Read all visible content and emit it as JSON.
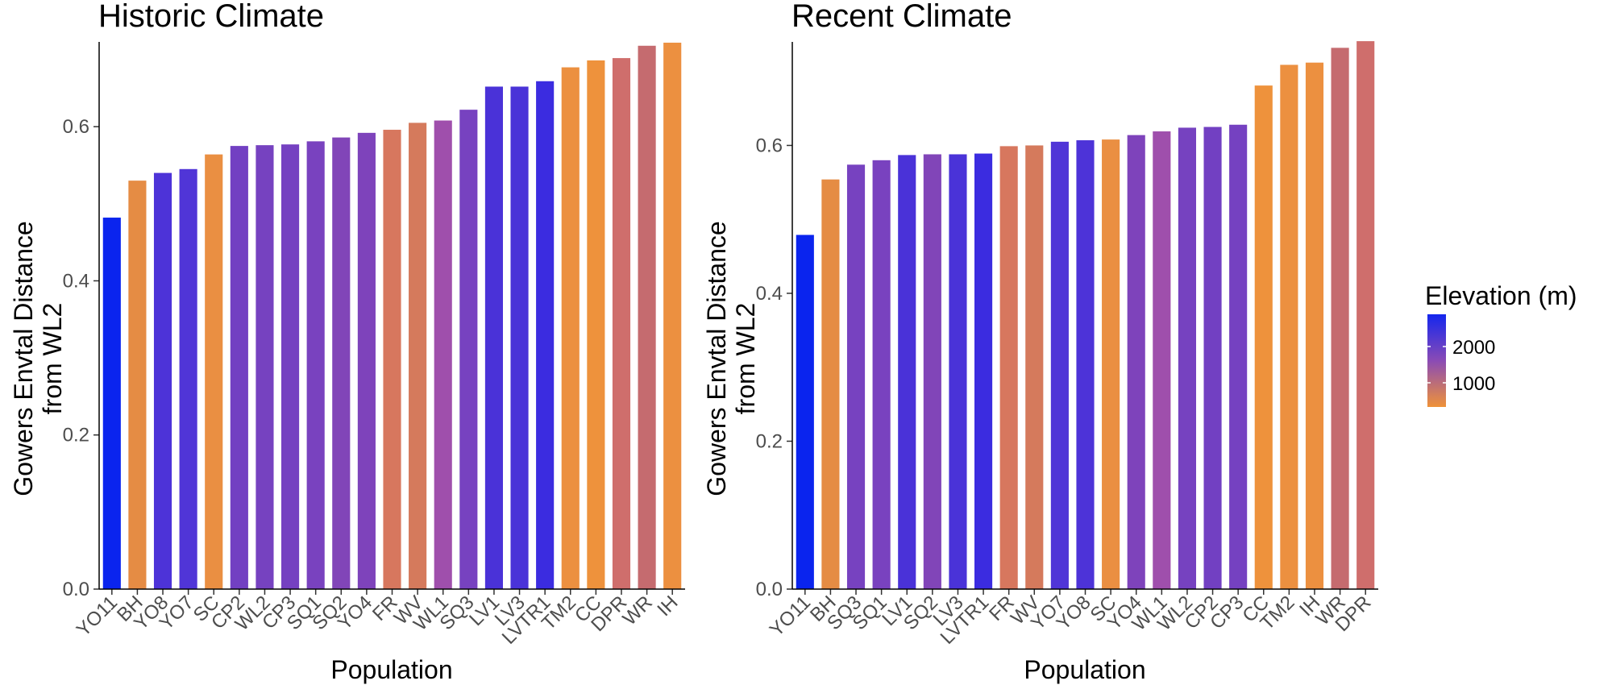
{
  "legend": {
    "title": "Elevation (m)",
    "labels": [
      "2000",
      "1000"
    ],
    "color_high": "#1426ee",
    "color_low": "#ef9239"
  },
  "chart_data": [
    {
      "type": "bar",
      "title": "Historic Climate",
      "xlabel": "Population",
      "ylabel_line1": "Gowers Envtal Distance",
      "ylabel_line2": "from WL2",
      "ylim": [
        0,
        0.71
      ],
      "yticks": [
        "0.0",
        "0.2",
        "0.4",
        "0.6"
      ],
      "categories": [
        "YO11",
        "BH",
        "YO8",
        "YO7",
        "SC",
        "CP2",
        "WL2",
        "CP3",
        "SQ1",
        "SQ2",
        "YO4",
        "FR",
        "WV",
        "WL1",
        "SQ3",
        "LV1",
        "LV3",
        "LVTR1",
        "TM2",
        "CC",
        "DPR",
        "WR",
        "IH"
      ],
      "values": [
        0.482,
        0.53,
        0.54,
        0.545,
        0.564,
        0.575,
        0.576,
        0.577,
        0.581,
        0.586,
        0.592,
        0.596,
        0.605,
        0.608,
        0.622,
        0.652,
        0.652,
        0.659,
        0.677,
        0.686,
        0.689,
        0.705,
        0.709
      ],
      "colors": [
        "#0a24ee",
        "#e58c44",
        "#4d33d8",
        "#5035d7",
        "#ea8f42",
        "#7240c2",
        "#7642c0",
        "#7541c1",
        "#7942bf",
        "#8145b8",
        "#7e43bb",
        "#d7775e",
        "#d57a5c",
        "#9f4fac",
        "#7742c0",
        "#4a32d8",
        "#4a33d8",
        "#3b2ce0",
        "#ec9040",
        "#ee923c",
        "#cf6e6c",
        "#c56b6f",
        "#ec9040"
      ]
    },
    {
      "type": "bar",
      "title": "Recent Climate",
      "xlabel": "Population",
      "ylabel_line1": "Gowers Envtal Distance",
      "ylabel_line2": "from WL2",
      "ylim": [
        0,
        0.74
      ],
      "yticks": [
        "0.0",
        "0.2",
        "0.4",
        "0.6"
      ],
      "categories": [
        "YO11",
        "BH",
        "SQ3",
        "SQ1",
        "LV1",
        "SQ2",
        "LV3",
        "LVTR1",
        "FR",
        "WV",
        "YO7",
        "YO8",
        "SC",
        "YO4",
        "WL1",
        "WL2",
        "CP2",
        "CP3",
        "CC",
        "TM2",
        "IH",
        "WR",
        "DPR"
      ],
      "values": [
        0.479,
        0.554,
        0.574,
        0.58,
        0.587,
        0.588,
        0.588,
        0.589,
        0.599,
        0.6,
        0.605,
        0.607,
        0.608,
        0.614,
        0.619,
        0.624,
        0.625,
        0.628,
        0.681,
        0.709,
        0.712,
        0.732,
        0.741
      ],
      "colors": [
        "#0a24ee",
        "#e58c44",
        "#7742c0",
        "#7942bf",
        "#4a32d8",
        "#8145b8",
        "#4a33d8",
        "#3b2ce0",
        "#d7775e",
        "#d57a5c",
        "#5035d7",
        "#4d33d8",
        "#ea8f42",
        "#7e43bb",
        "#9f4fac",
        "#7642c0",
        "#7240c2",
        "#7541c1",
        "#ee923c",
        "#ec9040",
        "#ec9040",
        "#c56b6f",
        "#cf6e6c"
      ]
    }
  ]
}
